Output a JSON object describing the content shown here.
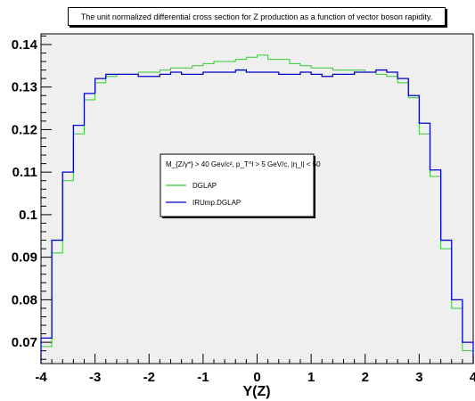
{
  "title": "The unit normalized differential cross section for Z production as a function of vector boson rapidity.",
  "chart_data": {
    "type": "line",
    "title": "The unit normalized differential cross section for Z production as a function of vector boson rapidity.",
    "xlabel": "Y(Z)",
    "ylabel": "",
    "xlim": [
      -4,
      4
    ],
    "ylim": [
      0.065,
      0.1425
    ],
    "x_ticks": [
      "-4",
      "-3",
      "-2",
      "-1",
      "0",
      "1",
      "2",
      "3",
      "4"
    ],
    "y_ticks": [
      "0.07",
      "0.08",
      "0.09",
      "0.1",
      "0.11",
      "0.12",
      "0.13",
      "0.14"
    ],
    "grid": false,
    "legend_header": "M_{Z/γ*} > 40 Gev/c², p_T^l > 5 GeV/c, |η_l| < 50",
    "legend_placement": "center-left",
    "x": [
      -3.9,
      -3.7,
      -3.5,
      -3.3,
      -3.1,
      -2.9,
      -2.7,
      -2.5,
      -2.3,
      -2.1,
      -1.9,
      -1.7,
      -1.5,
      -1.3,
      -1.1,
      -0.9,
      -0.7,
      -0.5,
      -0.3,
      -0.1,
      0.1,
      0.3,
      0.5,
      0.7,
      0.9,
      1.1,
      1.3,
      1.5,
      1.7,
      1.9,
      2.1,
      2.3,
      2.5,
      2.7,
      2.9,
      3.1,
      3.3,
      3.5,
      3.7,
      3.9
    ],
    "series": [
      {
        "name": "DGLAP",
        "color": "#33cc33",
        "values": [
          0.069,
          0.091,
          0.108,
          0.119,
          0.127,
          0.131,
          0.1325,
          0.133,
          0.133,
          0.1335,
          0.1335,
          0.134,
          0.1345,
          0.1345,
          0.135,
          0.1355,
          0.136,
          0.136,
          0.1365,
          0.137,
          0.1375,
          0.1365,
          0.1365,
          0.1355,
          0.135,
          0.1345,
          0.1345,
          0.134,
          0.134,
          0.134,
          0.1335,
          0.133,
          0.1325,
          0.131,
          0.1275,
          0.119,
          0.109,
          0.092,
          0.078,
          0.068
        ]
      },
      {
        "name": "IRUmp.DGLAP",
        "color": "#0000cc",
        "values": [
          0.071,
          0.094,
          0.11,
          0.121,
          0.1285,
          0.132,
          0.133,
          0.133,
          0.133,
          0.1325,
          0.1325,
          0.133,
          0.1335,
          0.133,
          0.133,
          0.1335,
          0.1335,
          0.1335,
          0.134,
          0.1335,
          0.1335,
          0.1335,
          0.133,
          0.133,
          0.1335,
          0.133,
          0.1325,
          0.133,
          0.133,
          0.1335,
          0.1335,
          0.134,
          0.1335,
          0.132,
          0.128,
          0.1215,
          0.1105,
          0.094,
          0.08,
          0.07
        ]
      }
    ]
  }
}
